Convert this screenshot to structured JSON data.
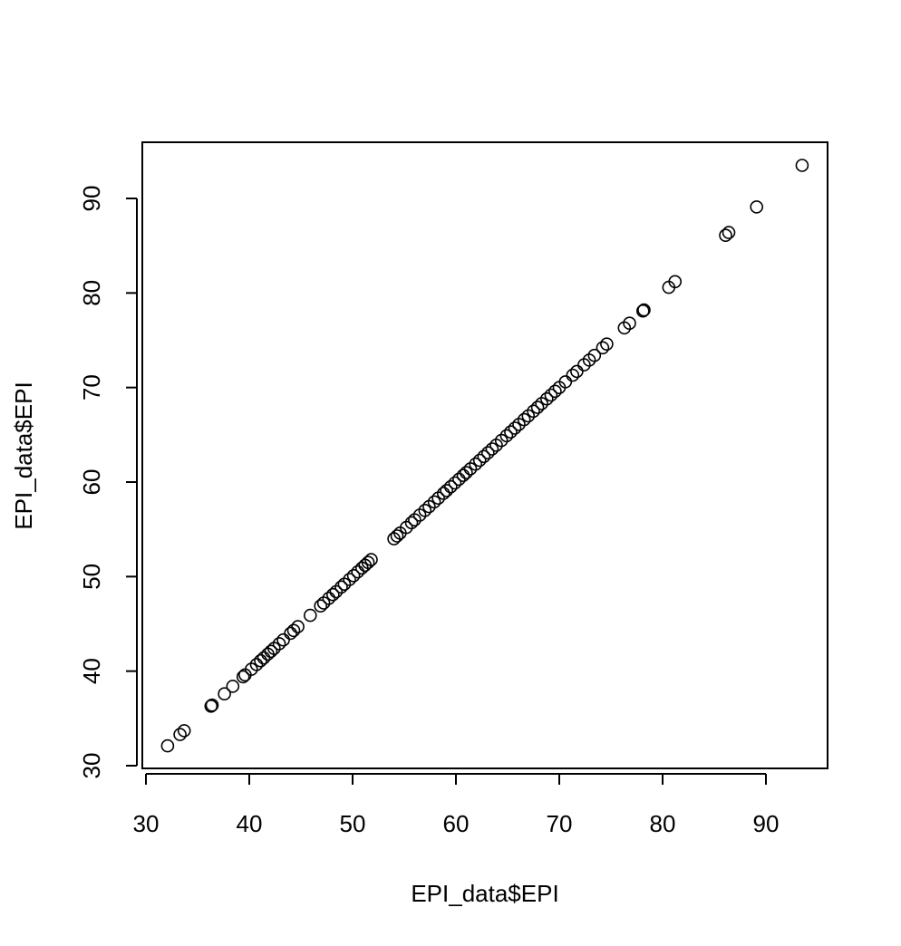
{
  "chart_data": {
    "type": "scatter",
    "title": "",
    "xlabel": "EPI_data$EPI",
    "ylabel": "EPI_data$EPI",
    "xlim": [
      30,
      95
    ],
    "ylim": [
      30,
      95
    ],
    "xticks": [
      30,
      40,
      50,
      60,
      70,
      80,
      90
    ],
    "yticks": [
      30,
      40,
      50,
      60,
      70,
      80,
      90
    ],
    "xtick_labels": [
      "30",
      "40",
      "50",
      "60",
      "70",
      "80",
      "90"
    ],
    "ytick_labels": [
      "30",
      "40",
      "50",
      "60",
      "70",
      "80",
      "90"
    ],
    "grid": false,
    "legend": "none",
    "marker": "open-circle",
    "colors": {
      "point": "#000000",
      "axis": "#000000",
      "background": "#ffffff"
    },
    "series": [
      {
        "x": [
          32.1,
          33.3,
          33.7,
          36.3,
          36.4,
          37.6,
          38.4,
          39.4,
          39.6,
          40.2,
          40.7,
          41.1,
          41.4,
          41.8,
          42.1,
          42.4,
          42.9,
          43.3,
          44.0,
          44.3,
          44.7,
          45.9,
          46.9,
          47.2,
          47.7,
          48.1,
          48.4,
          48.9,
          49.2,
          49.7,
          50.1,
          50.5,
          50.9,
          51.2,
          51.5,
          51.8,
          54.0,
          54.3,
          54.6,
          55.2,
          55.7,
          56.0,
          56.5,
          57.0,
          57.4,
          57.9,
          58.3,
          58.8,
          59.1,
          59.5,
          59.9,
          60.3,
          60.7,
          61.0,
          61.4,
          61.9,
          62.3,
          62.7,
          63.1,
          63.5,
          63.9,
          64.4,
          64.9,
          65.3,
          65.7,
          66.1,
          66.6,
          67.0,
          67.5,
          67.9,
          68.3,
          68.8,
          69.2,
          69.6,
          70.0,
          70.6,
          71.3,
          71.7,
          72.4,
          72.9,
          73.4,
          74.2,
          74.6,
          76.3,
          76.8,
          78.1,
          78.2,
          80.6,
          81.2,
          86.1,
          86.4,
          89.1,
          93.5
        ],
        "y": [
          32.1,
          33.3,
          33.7,
          36.3,
          36.4,
          37.6,
          38.4,
          39.4,
          39.6,
          40.2,
          40.7,
          41.1,
          41.4,
          41.8,
          42.1,
          42.4,
          42.9,
          43.3,
          44.0,
          44.3,
          44.7,
          45.9,
          46.9,
          47.2,
          47.7,
          48.1,
          48.4,
          48.9,
          49.2,
          49.7,
          50.1,
          50.5,
          50.9,
          51.2,
          51.5,
          51.8,
          54.0,
          54.3,
          54.6,
          55.2,
          55.7,
          56.0,
          56.5,
          57.0,
          57.4,
          57.9,
          58.3,
          58.8,
          59.1,
          59.5,
          59.9,
          60.3,
          60.7,
          61.0,
          61.4,
          61.9,
          62.3,
          62.7,
          63.1,
          63.5,
          63.9,
          64.4,
          64.9,
          65.3,
          65.7,
          66.1,
          66.6,
          67.0,
          67.5,
          67.9,
          68.3,
          68.8,
          69.2,
          69.6,
          70.0,
          70.6,
          71.3,
          71.7,
          72.4,
          72.9,
          73.4,
          74.2,
          74.6,
          76.3,
          76.8,
          78.1,
          78.2,
          80.6,
          81.2,
          86.1,
          86.4,
          89.1,
          93.5
        ]
      }
    ]
  }
}
